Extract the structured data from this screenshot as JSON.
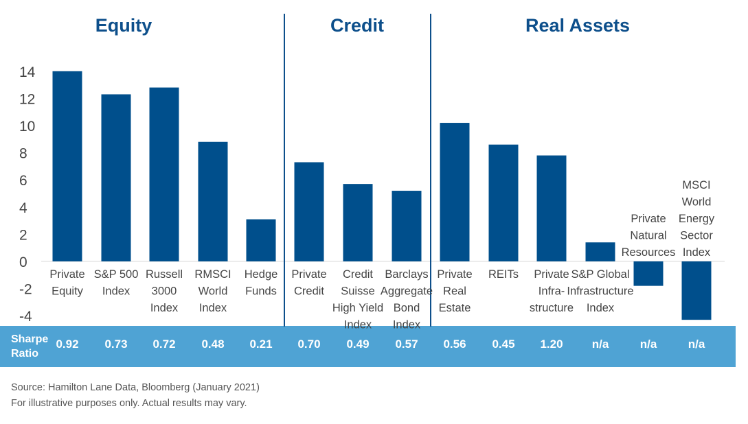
{
  "chart_data": {
    "type": "bar",
    "groups": [
      {
        "name": "Equity",
        "start": 0,
        "count": 5
      },
      {
        "name": "Credit",
        "start": 5,
        "count": 3
      },
      {
        "name": "Real Assets",
        "start": 8,
        "count": 6
      }
    ],
    "categories": [
      [
        "Private",
        "Equity"
      ],
      [
        "S&P 500",
        "Index"
      ],
      [
        "Russell",
        "3000",
        "Index"
      ],
      [
        "RMSCI",
        "World",
        "Index"
      ],
      [
        "Hedge",
        "Funds"
      ],
      [
        "Private",
        "Credit"
      ],
      [
        "Credit",
        "Suisse",
        "High Yield",
        "Index"
      ],
      [
        "Barclays",
        "Aggregate",
        "Bond",
        "Index"
      ],
      [
        "Private",
        "Real",
        "Estate"
      ],
      [
        "REITs"
      ],
      [
        "Private",
        "Infra-",
        "structure"
      ],
      [
        "S&P Global",
        "Infrastructure",
        "Index"
      ],
      [
        "Private",
        "Natural",
        "Resources"
      ],
      [
        "MSCI",
        "World",
        "Energy",
        "Sector",
        "Index"
      ]
    ],
    "values": [
      14.0,
      12.3,
      12.8,
      8.8,
      3.1,
      7.3,
      5.7,
      5.2,
      10.2,
      8.6,
      7.8,
      1.4,
      -1.8,
      -4.3
    ],
    "yticks": [
      "14",
      "12",
      "10",
      "8",
      "6",
      "4",
      "2",
      "0",
      "-2",
      "-4"
    ],
    "ylim": [
      -4.3,
      14.3
    ],
    "bar_color": "#004f8c",
    "title_color": "#0d4f8b"
  },
  "sharpe": {
    "label": [
      "Sharpe",
      "Ratio"
    ],
    "values": [
      "0.92",
      "0.73",
      "0.72",
      "0.48",
      "0.21",
      "0.70",
      "0.49",
      "0.57",
      "0.56",
      "0.45",
      "1.20",
      "n/a",
      "n/a",
      "n/a"
    ],
    "bg_color": "#4fa3d4"
  },
  "footer": {
    "source": "Source: Hamilton Lane Data, Bloomberg (January 2021)",
    "disclaimer": "For illustrative purposes only. Actual results may vary."
  }
}
